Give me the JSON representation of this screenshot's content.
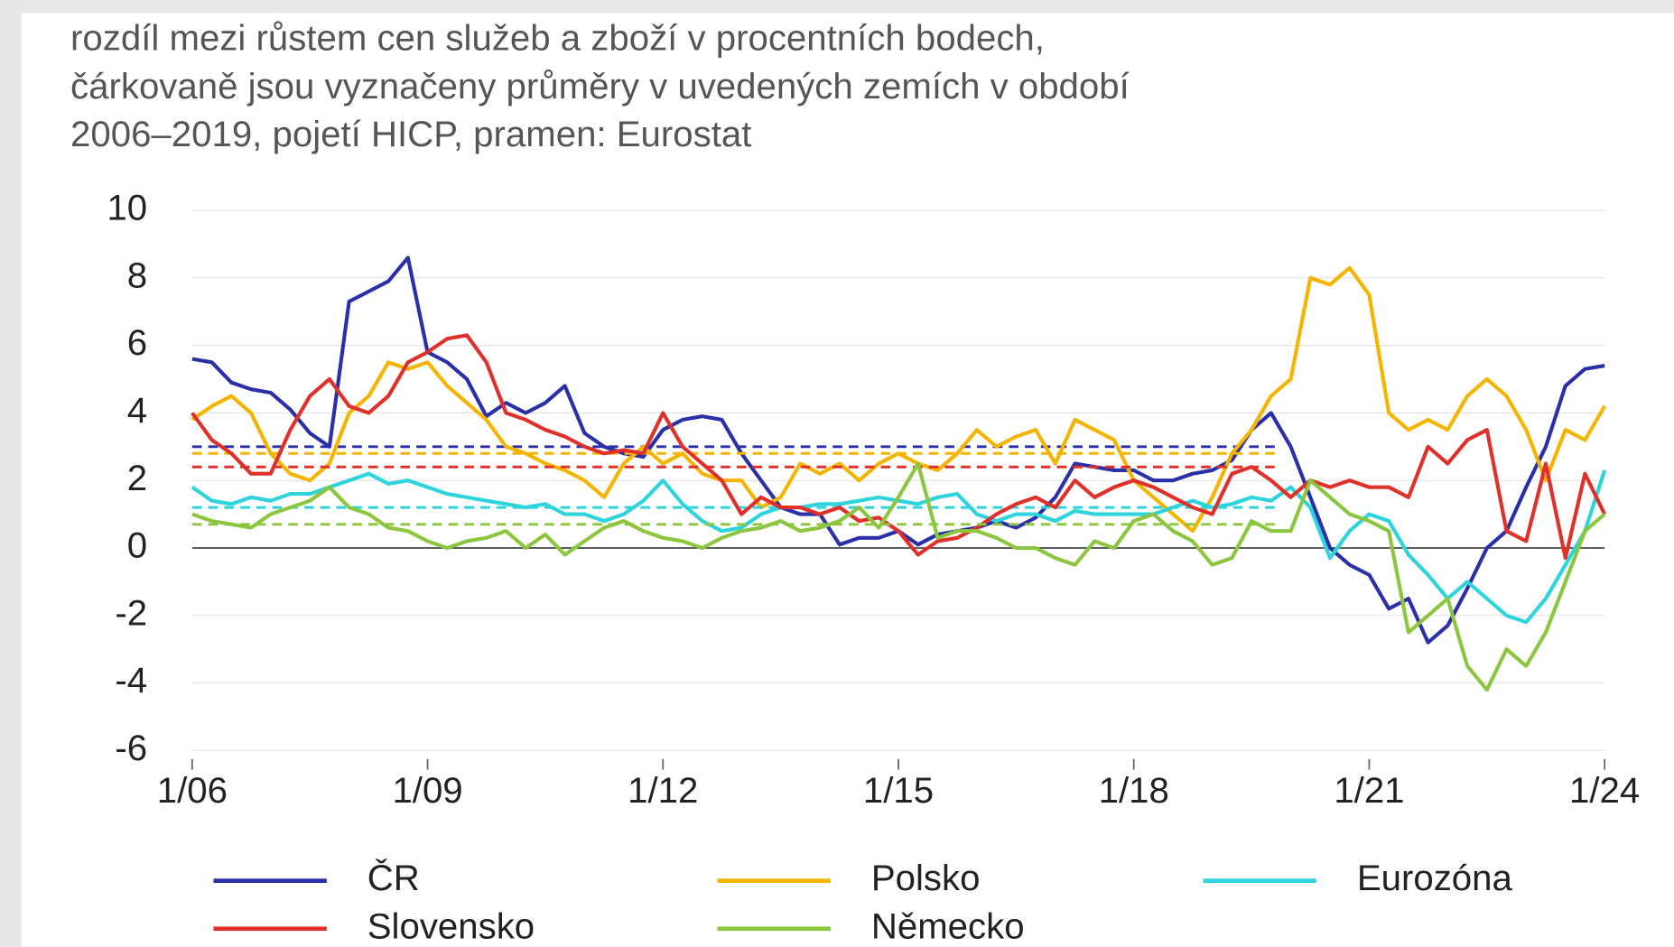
{
  "chart_data": {
    "type": "line",
    "title_lines": [
      "rozdíl mezi růstem cen služeb a zboží v procentních bodech,",
      "čárkovaně jsou vyznačeny průměry v uvedených zemích v období",
      "2006–2019, pojetí HICP, pramen: Eurostat"
    ],
    "x": [
      "1/06",
      "4/06",
      "7/06",
      "10/06",
      "1/07",
      "4/07",
      "7/07",
      "10/07",
      "1/08",
      "4/08",
      "7/08",
      "10/08",
      "1/09",
      "4/09",
      "7/09",
      "10/09",
      "1/10",
      "4/10",
      "7/10",
      "10/10",
      "1/11",
      "4/11",
      "7/11",
      "10/11",
      "1/12",
      "4/12",
      "7/12",
      "10/12",
      "1/13",
      "4/13",
      "7/13",
      "10/13",
      "1/14",
      "4/14",
      "7/14",
      "10/14",
      "1/15",
      "4/15",
      "7/15",
      "10/15",
      "1/16",
      "4/16",
      "7/16",
      "10/16",
      "1/17",
      "4/17",
      "7/17",
      "10/17",
      "1/18",
      "4/18",
      "7/18",
      "10/18",
      "1/19",
      "4/19",
      "7/19",
      "10/19",
      "1/20",
      "4/20",
      "7/20",
      "10/20",
      "1/21",
      "4/21",
      "7/21",
      "10/21",
      "1/22",
      "4/22",
      "7/22",
      "10/22",
      "1/23",
      "4/23",
      "7/23",
      "10/23",
      "1/24"
    ],
    "xticks": [
      "1/06",
      "1/09",
      "1/12",
      "1/15",
      "1/18",
      "1/21",
      "1/24"
    ],
    "ylim": [
      -6,
      10
    ],
    "yticks": [
      -6,
      -4,
      -2,
      0,
      2,
      4,
      6,
      8,
      10
    ],
    "grid": true,
    "series": [
      {
        "name": "ČR",
        "color": "#2b2fa8",
        "mean": 3.0,
        "values": [
          5.6,
          5.5,
          4.9,
          4.7,
          4.6,
          4.1,
          3.4,
          3.0,
          7.3,
          7.6,
          7.9,
          8.6,
          5.8,
          5.5,
          5.0,
          3.9,
          4.3,
          4.0,
          4.3,
          4.8,
          3.4,
          3.0,
          2.8,
          2.7,
          3.5,
          3.8,
          3.9,
          3.8,
          2.8,
          2.0,
          1.2,
          1.0,
          1.0,
          0.1,
          0.3,
          0.3,
          0.5,
          0.1,
          0.4,
          0.5,
          0.6,
          0.8,
          0.6,
          0.9,
          1.5,
          2.5,
          2.4,
          2.3,
          2.3,
          2.0,
          2.0,
          2.2,
          2.3,
          2.6,
          3.5,
          4.0,
          3.0,
          1.5,
          0.0,
          -0.5,
          -0.8,
          -1.8,
          -1.5,
          -2.8,
          -2.3,
          -1.2,
          0.0,
          0.5,
          1.8,
          3.0,
          4.8,
          5.3,
          5.4
        ]
      },
      {
        "name": "Polsko",
        "color": "#f5b400",
        "mean": 2.8,
        "values": [
          3.8,
          4.2,
          4.5,
          4.0,
          2.8,
          2.2,
          2.0,
          2.5,
          4.0,
          4.5,
          5.5,
          5.3,
          5.5,
          4.8,
          4.3,
          3.8,
          3.0,
          2.8,
          2.5,
          2.3,
          2.0,
          1.5,
          2.5,
          3.0,
          2.5,
          2.8,
          2.2,
          2.0,
          2.0,
          1.2,
          1.5,
          2.5,
          2.2,
          2.5,
          2.0,
          2.5,
          2.8,
          2.5,
          2.3,
          2.8,
          3.5,
          3.0,
          3.3,
          3.5,
          2.5,
          3.8,
          3.5,
          3.2,
          2.0,
          1.5,
          1.0,
          0.5,
          1.5,
          2.8,
          3.5,
          4.5,
          5.0,
          8.0,
          7.8,
          8.3,
          7.5,
          4.0,
          3.5,
          3.8,
          3.5,
          4.5,
          5.0,
          4.5,
          3.5,
          2.0,
          3.5,
          3.2,
          4.2
        ]
      },
      {
        "name": "Eurozóna",
        "color": "#2ed4dc",
        "mean": 1.2,
        "values": [
          1.8,
          1.4,
          1.3,
          1.5,
          1.4,
          1.6,
          1.6,
          1.8,
          2.0,
          2.2,
          1.9,
          2.0,
          1.8,
          1.6,
          1.5,
          1.4,
          1.3,
          1.2,
          1.3,
          1.0,
          1.0,
          0.8,
          1.0,
          1.4,
          2.0,
          1.3,
          0.8,
          0.5,
          0.6,
          1.0,
          1.2,
          1.2,
          1.3,
          1.3,
          1.4,
          1.5,
          1.4,
          1.3,
          1.5,
          1.6,
          1.0,
          0.8,
          1.0,
          1.0,
          0.8,
          1.1,
          1.0,
          1.0,
          1.0,
          1.0,
          1.2,
          1.4,
          1.2,
          1.3,
          1.5,
          1.4,
          1.8,
          1.2,
          -0.3,
          0.5,
          1.0,
          0.8,
          -0.2,
          -0.8,
          -1.5,
          -1.0,
          -1.5,
          -2.0,
          -2.2,
          -1.5,
          -0.5,
          0.5,
          2.3
        ]
      },
      {
        "name": "Slovensko",
        "color": "#e0302a",
        "mean": 2.4,
        "values": [
          4.0,
          3.2,
          2.8,
          2.2,
          2.2,
          3.5,
          4.5,
          5.0,
          4.2,
          4.0,
          4.5,
          5.5,
          5.8,
          6.2,
          6.3,
          5.5,
          4.0,
          3.8,
          3.5,
          3.3,
          3.0,
          2.8,
          2.9,
          2.8,
          4.0,
          3.0,
          2.5,
          2.0,
          1.0,
          1.5,
          1.2,
          1.2,
          1.0,
          1.2,
          0.8,
          0.9,
          0.5,
          -0.2,
          0.2,
          0.3,
          0.6,
          1.0,
          1.3,
          1.5,
          1.2,
          2.0,
          1.5,
          1.8,
          2.0,
          1.8,
          1.5,
          1.2,
          1.0,
          2.2,
          2.4,
          2.0,
          1.5,
          2.0,
          1.8,
          2.0,
          1.8,
          1.8,
          1.5,
          3.0,
          2.5,
          3.2,
          3.5,
          0.5,
          0.2,
          2.5,
          -0.3,
          2.2,
          1.0
        ]
      },
      {
        "name": "Německo",
        "color": "#8cc63f",
        "mean": 0.7,
        "values": [
          1.0,
          0.8,
          0.7,
          0.6,
          1.0,
          1.2,
          1.4,
          1.8,
          1.2,
          1.0,
          0.6,
          0.5,
          0.2,
          0.0,
          0.2,
          0.3,
          0.5,
          0.0,
          0.4,
          -0.2,
          0.2,
          0.6,
          0.8,
          0.5,
          0.3,
          0.2,
          0.0,
          0.3,
          0.5,
          0.6,
          0.8,
          0.5,
          0.6,
          0.8,
          1.2,
          0.6,
          1.5,
          2.5,
          0.3,
          0.5,
          0.5,
          0.3,
          0.0,
          0.0,
          -0.3,
          -0.5,
          0.2,
          0.0,
          0.8,
          1.0,
          0.5,
          0.2,
          -0.5,
          -0.3,
          0.8,
          0.5,
          0.5,
          2.0,
          1.5,
          1.0,
          0.8,
          0.5,
          -2.5,
          -2.0,
          -1.5,
          -3.5,
          -4.2,
          -3.0,
          -3.5,
          -2.5,
          -1.0,
          0.5,
          1.0
        ]
      }
    ]
  }
}
